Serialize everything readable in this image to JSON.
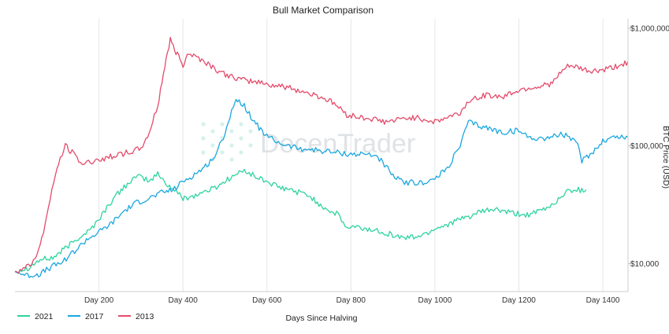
{
  "chart_data": {
    "type": "line",
    "title": "Bull Market Comparison",
    "xlabel": "Days Since Halving",
    "ylabel": "BTC Price (USD)",
    "y_scale": "log",
    "xlim": [
      0,
      1460
    ],
    "ylim": [
      5800,
      1200000
    ],
    "x_ticks": [
      {
        "value": 200,
        "label": "Day 200"
      },
      {
        "value": 400,
        "label": "Day 400"
      },
      {
        "value": 600,
        "label": "Day 600"
      },
      {
        "value": 800,
        "label": "Day 800"
      },
      {
        "value": 1000,
        "label": "Day 1000"
      },
      {
        "value": 1200,
        "label": "Day 1200"
      },
      {
        "value": 1400,
        "label": "Day 1400"
      }
    ],
    "y_ticks": [
      {
        "value": 10000,
        "label": "$10,000"
      },
      {
        "value": 100000,
        "label": "$100,000"
      },
      {
        "value": 1000000,
        "label": "$1,000,000"
      }
    ],
    "grid": "vertical",
    "legend_position": "bottom-left",
    "watermark": "DecenTrader",
    "series": [
      {
        "name": "2021",
        "color": "#2ed3a0",
        "points": [
          [
            0,
            8600
          ],
          [
            30,
            9200
          ],
          [
            60,
            10800
          ],
          [
            90,
            11200
          ],
          [
            120,
            13500
          ],
          [
            150,
            16500
          ],
          [
            180,
            19500
          ],
          [
            200,
            24000
          ],
          [
            230,
            34000
          ],
          [
            260,
            45000
          ],
          [
            280,
            52000
          ],
          [
            300,
            55000
          ],
          [
            320,
            50000
          ],
          [
            340,
            58000
          ],
          [
            360,
            48000
          ],
          [
            380,
            42000
          ],
          [
            400,
            36000
          ],
          [
            430,
            38000
          ],
          [
            460,
            42000
          ],
          [
            480,
            45000
          ],
          [
            510,
            53000
          ],
          [
            530,
            58000
          ],
          [
            550,
            62000
          ],
          [
            570,
            55000
          ],
          [
            600,
            50000
          ],
          [
            630,
            44000
          ],
          [
            660,
            42000
          ],
          [
            700,
            38000
          ],
          [
            720,
            33000
          ],
          [
            750,
            28000
          ],
          [
            770,
            26000
          ],
          [
            790,
            20000
          ],
          [
            810,
            20500
          ],
          [
            840,
            19500
          ],
          [
            870,
            19000
          ],
          [
            900,
            17500
          ],
          [
            920,
            16700
          ],
          [
            950,
            16800
          ],
          [
            980,
            18000
          ],
          [
            1000,
            20000
          ],
          [
            1020,
            21000
          ],
          [
            1050,
            23000
          ],
          [
            1080,
            25000
          ],
          [
            1110,
            27500
          ],
          [
            1140,
            29000
          ],
          [
            1160,
            28000
          ],
          [
            1190,
            26500
          ],
          [
            1220,
            26000
          ],
          [
            1240,
            27000
          ],
          [
            1270,
            30000
          ],
          [
            1290,
            34000
          ],
          [
            1310,
            40000
          ],
          [
            1330,
            43000
          ],
          [
            1350,
            42000
          ],
          [
            1360,
            42500
          ]
        ]
      },
      {
        "name": "2017",
        "color": "#1aa7df",
        "points": [
          [
            0,
            8600
          ],
          [
            30,
            7900
          ],
          [
            60,
            8200
          ],
          [
            90,
            9500
          ],
          [
            110,
            10200
          ],
          [
            130,
            11800
          ],
          [
            150,
            13500
          ],
          [
            170,
            16000
          ],
          [
            200,
            18500
          ],
          [
            230,
            22000
          ],
          [
            260,
            28000
          ],
          [
            290,
            33000
          ],
          [
            320,
            36000
          ],
          [
            350,
            40000
          ],
          [
            380,
            43000
          ],
          [
            400,
            50000
          ],
          [
            420,
            55000
          ],
          [
            450,
            65000
          ],
          [
            480,
            85000
          ],
          [
            500,
            130000
          ],
          [
            520,
            220000
          ],
          [
            530,
            250000
          ],
          [
            550,
            210000
          ],
          [
            570,
            160000
          ],
          [
            600,
            120000
          ],
          [
            620,
            110000
          ],
          [
            650,
            100000
          ],
          [
            680,
            95000
          ],
          [
            720,
            92000
          ],
          [
            760,
            88000
          ],
          [
            800,
            85000
          ],
          [
            840,
            85000
          ],
          [
            860,
            83000
          ],
          [
            880,
            70000
          ],
          [
            900,
            55000
          ],
          [
            920,
            50000
          ],
          [
            960,
            48000
          ],
          [
            1000,
            52000
          ],
          [
            1030,
            65000
          ],
          [
            1060,
            100000
          ],
          [
            1080,
            160000
          ],
          [
            1100,
            150000
          ],
          [
            1130,
            140000
          ],
          [
            1160,
            130000
          ],
          [
            1200,
            135000
          ],
          [
            1220,
            120000
          ],
          [
            1250,
            115000
          ],
          [
            1280,
            120000
          ],
          [
            1300,
            125000
          ],
          [
            1320,
            120000
          ],
          [
            1340,
            100000
          ],
          [
            1350,
            75000
          ],
          [
            1370,
            85000
          ],
          [
            1400,
            110000
          ],
          [
            1430,
            120000
          ],
          [
            1460,
            118000
          ]
        ]
      },
      {
        "name": "2013",
        "color": "#e44b6b",
        "points": [
          [
            0,
            8600
          ],
          [
            20,
            9000
          ],
          [
            40,
            10000
          ],
          [
            60,
            14000
          ],
          [
            80,
            30000
          ],
          [
            100,
            65000
          ],
          [
            120,
            100000
          ],
          [
            140,
            85000
          ],
          [
            160,
            70000
          ],
          [
            190,
            75000
          ],
          [
            220,
            80000
          ],
          [
            250,
            85000
          ],
          [
            280,
            90000
          ],
          [
            300,
            95000
          ],
          [
            320,
            130000
          ],
          [
            340,
            220000
          ],
          [
            350,
            350000
          ],
          [
            360,
            550000
          ],
          [
            370,
            800000
          ],
          [
            380,
            650000
          ],
          [
            390,
            580000
          ],
          [
            400,
            480000
          ],
          [
            410,
            620000
          ],
          [
            430,
            580000
          ],
          [
            460,
            500000
          ],
          [
            490,
            420000
          ],
          [
            520,
            380000
          ],
          [
            550,
            360000
          ],
          [
            580,
            350000
          ],
          [
            610,
            330000
          ],
          [
            640,
            320000
          ],
          [
            670,
            300000
          ],
          [
            700,
            280000
          ],
          [
            730,
            260000
          ],
          [
            760,
            230000
          ],
          [
            790,
            185000
          ],
          [
            820,
            175000
          ],
          [
            850,
            170000
          ],
          [
            880,
            160000
          ],
          [
            910,
            165000
          ],
          [
            940,
            175000
          ],
          [
            970,
            170000
          ],
          [
            1000,
            160000
          ],
          [
            1030,
            175000
          ],
          [
            1060,
            190000
          ],
          [
            1080,
            240000
          ],
          [
            1100,
            260000
          ],
          [
            1130,
            270000
          ],
          [
            1160,
            260000
          ],
          [
            1190,
            290000
          ],
          [
            1220,
            310000
          ],
          [
            1250,
            320000
          ],
          [
            1280,
            340000
          ],
          [
            1300,
            420000
          ],
          [
            1320,
            480000
          ],
          [
            1340,
            460000
          ],
          [
            1370,
            430000
          ],
          [
            1400,
            440000
          ],
          [
            1430,
            470000
          ],
          [
            1460,
            520000
          ]
        ]
      }
    ]
  }
}
